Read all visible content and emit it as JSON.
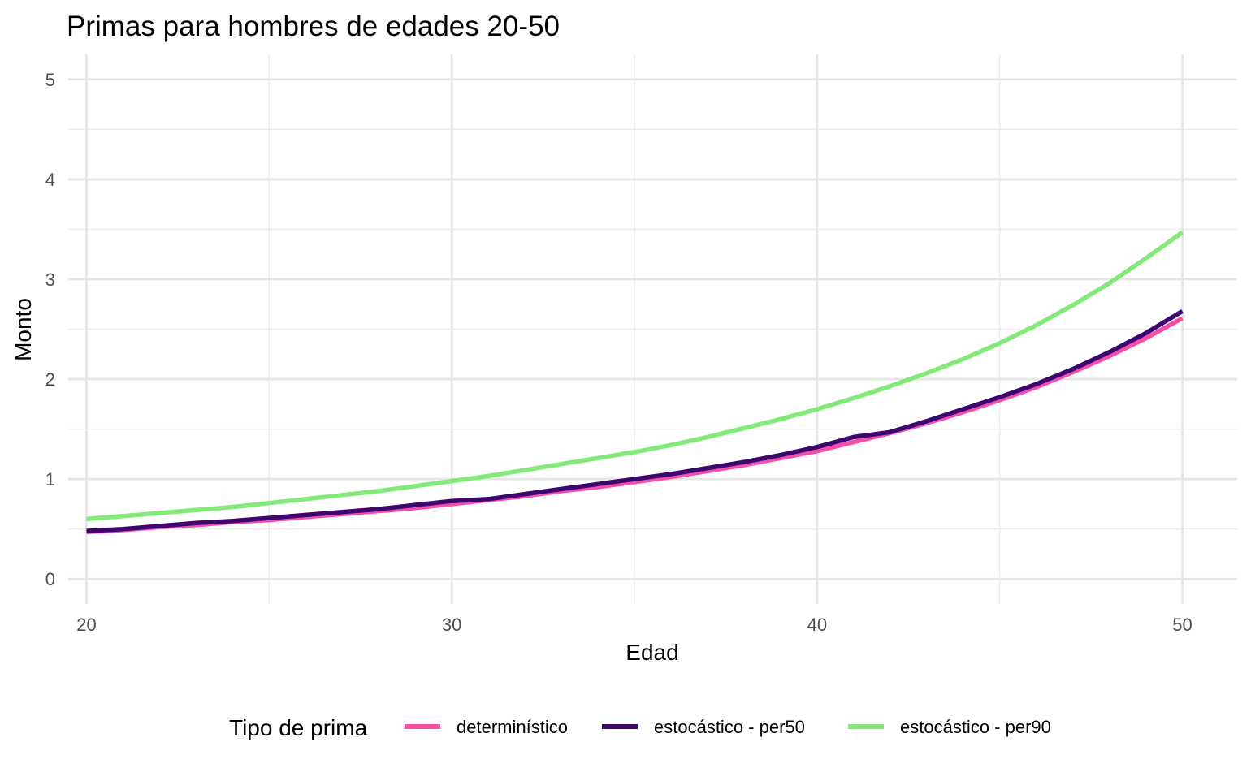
{
  "chart_data": {
    "type": "line",
    "title": "Primas para hombres de edades 20-50",
    "xlabel": "Edad",
    "ylabel": "Monto",
    "xlim": [
      19.5,
      51.5
    ],
    "ylim": [
      -0.25,
      5.25
    ],
    "x_ticks": [
      20,
      30,
      40,
      50
    ],
    "y_ticks": [
      0,
      1,
      2,
      3,
      4,
      5
    ],
    "grid": true,
    "legend_position": "bottom",
    "legend_title": "Tipo de prima",
    "x": [
      20,
      21,
      22,
      23,
      24,
      25,
      26,
      27,
      28,
      29,
      30,
      31,
      32,
      33,
      34,
      35,
      36,
      37,
      38,
      39,
      40,
      41,
      42,
      43,
      44,
      45,
      46,
      47,
      48,
      49,
      50
    ],
    "series": [
      {
        "name": "determinístico",
        "color": "#f34fa7",
        "values": [
          0.47,
          0.49,
          0.52,
          0.54,
          0.57,
          0.59,
          0.62,
          0.65,
          0.68,
          0.71,
          0.75,
          0.79,
          0.83,
          0.88,
          0.92,
          0.97,
          1.02,
          1.08,
          1.14,
          1.21,
          1.28,
          1.37,
          1.46,
          1.56,
          1.67,
          1.79,
          1.92,
          2.07,
          2.23,
          2.41,
          2.61
        ]
      },
      {
        "name": "estocástico - per50",
        "color": "#3f0671",
        "values": [
          0.48,
          0.5,
          0.53,
          0.56,
          0.58,
          0.61,
          0.64,
          0.67,
          0.7,
          0.74,
          0.78,
          0.8,
          0.85,
          0.9,
          0.95,
          1.0,
          1.05,
          1.11,
          1.17,
          1.24,
          1.32,
          1.42,
          1.47,
          1.58,
          1.7,
          1.82,
          1.95,
          2.1,
          2.27,
          2.46,
          2.68
        ]
      },
      {
        "name": "estocástico - per90",
        "color": "#83ea7a",
        "values": [
          0.6,
          0.63,
          0.66,
          0.69,
          0.72,
          0.76,
          0.8,
          0.84,
          0.88,
          0.93,
          0.98,
          1.03,
          1.09,
          1.15,
          1.21,
          1.27,
          1.34,
          1.42,
          1.51,
          1.6,
          1.7,
          1.81,
          1.93,
          2.06,
          2.2,
          2.36,
          2.54,
          2.74,
          2.96,
          3.21,
          3.47
        ]
      }
    ]
  }
}
